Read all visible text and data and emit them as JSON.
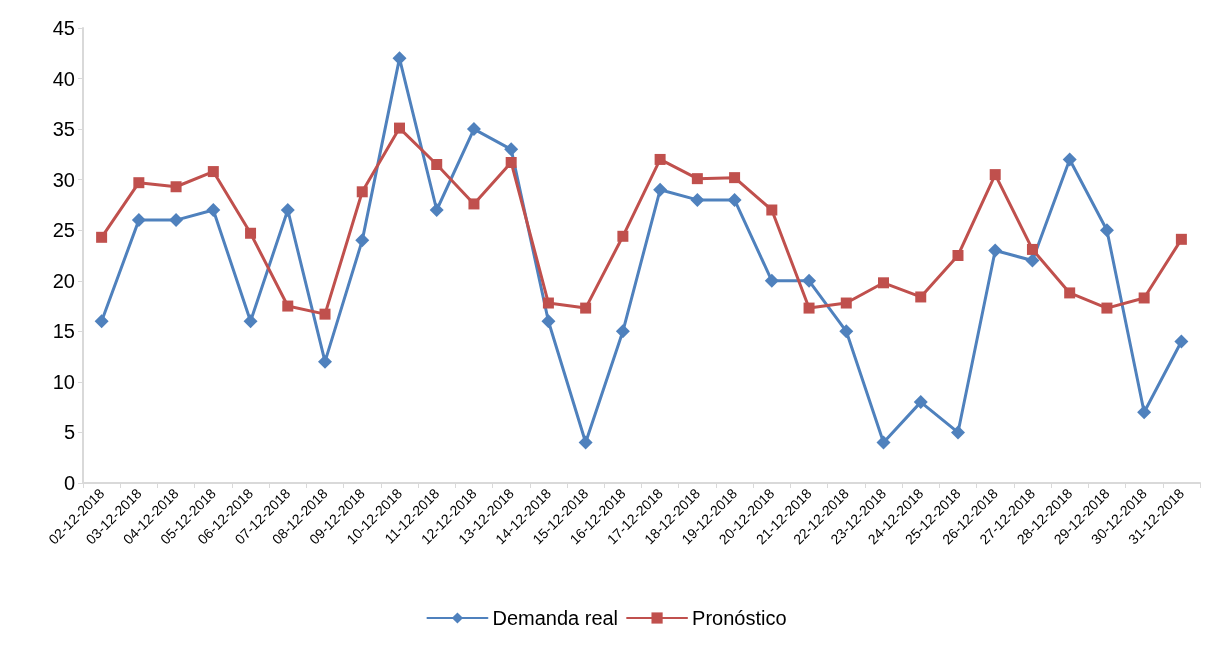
{
  "chart_data": {
    "type": "line",
    "categories": [
      "02-12-2018",
      "03-12-2018",
      "04-12-2018",
      "05-12-2018",
      "06-12-2018",
      "07-12-2018",
      "08-12-2018",
      "09-12-2018",
      "10-12-2018",
      "11-12-2018",
      "12-12-2018",
      "13-12-2018",
      "14-12-2018",
      "15-12-2018",
      "16-12-2018",
      "17-12-2018",
      "18-12-2018",
      "19-12-2018",
      "20-12-2018",
      "21-12-2018",
      "22-12-2018",
      "23-12-2018",
      "24-12-2018",
      "25-12-2018",
      "26-12-2018",
      "27-12-2018",
      "28-12-2018",
      "29-12-2018",
      "30-12-2018",
      "31-12-2018"
    ],
    "series": [
      {
        "name": "Demanda real",
        "color": "#4f81bd",
        "marker": "diamond",
        "values": [
          16,
          26,
          26,
          27,
          16,
          27,
          12,
          24,
          42,
          27,
          35,
          33,
          16,
          4,
          15,
          29,
          28,
          28,
          20,
          20,
          15,
          4,
          8,
          5,
          23,
          22,
          32,
          25,
          7,
          14
        ]
      },
      {
        "name": "Pronóstico",
        "color": "#c0504d",
        "marker": "square",
        "values": [
          24.3,
          29.7,
          29.3,
          30.8,
          24.7,
          17.5,
          16.7,
          28.8,
          35.1,
          31.5,
          27.6,
          31.7,
          17.8,
          17.3,
          24.4,
          32.0,
          30.1,
          30.2,
          27.0,
          17.3,
          17.8,
          19.8,
          18.4,
          22.5,
          30.5,
          23.1,
          18.8,
          17.3,
          18.3,
          24.1
        ]
      }
    ],
    "ylim": [
      0,
      45
    ],
    "yticks": [
      0,
      5,
      10,
      15,
      20,
      25,
      30,
      35,
      40,
      45
    ],
    "grid": false,
    "legend": "bottom",
    "line_style": "solid"
  }
}
